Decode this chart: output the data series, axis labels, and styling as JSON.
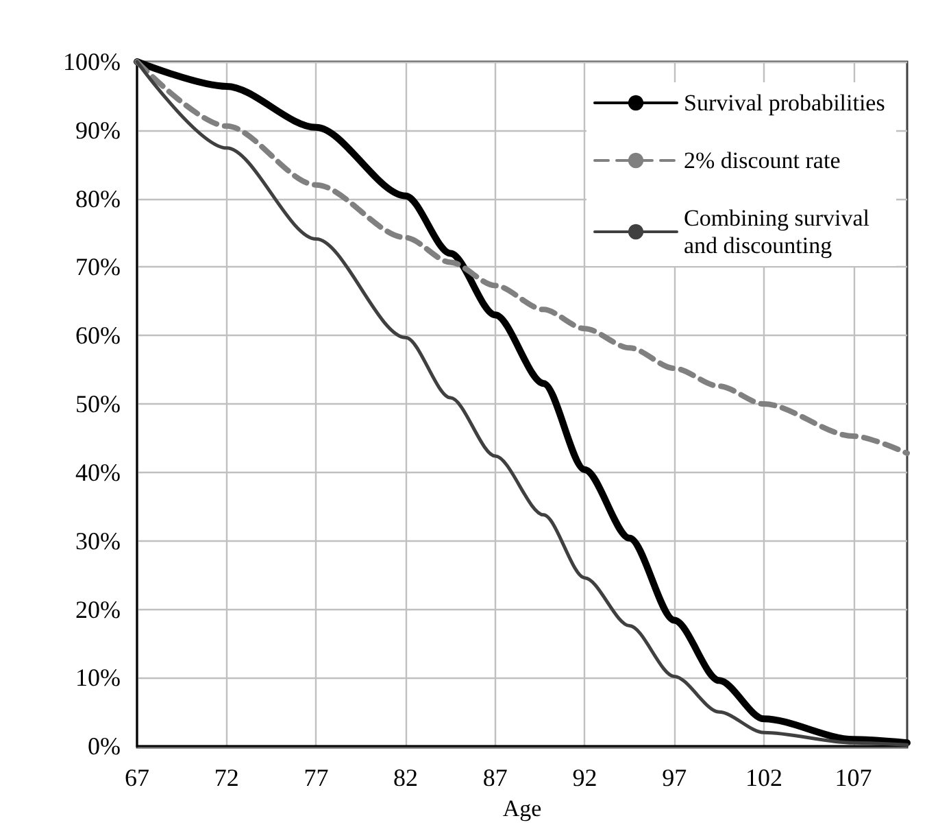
{
  "chart_data": {
    "type": "line",
    "xlabel": "Age",
    "x": [
      67,
      72,
      77,
      82,
      84.5,
      87,
      89.7,
      92,
      94.5,
      97,
      99.5,
      102,
      107,
      110
    ],
    "series": [
      {
        "name": "Survival probabilities",
        "color": "#000000",
        "line_style": "solid",
        "values": [
          100,
          96.4,
          90.4,
          80.4,
          72,
          63,
          53,
          40.4,
          30.4,
          18.4,
          9.6,
          4,
          1,
          0.5
        ]
      },
      {
        "name": "2% discount rate",
        "color": "#808080",
        "line_style": "dashed",
        "values": [
          100,
          90.6,
          82,
          74.3,
          70.7,
          67.3,
          63.8,
          61,
          58.2,
          55.2,
          52.6,
          50,
          45.3,
          42.8
        ]
      },
      {
        "name": "Combining survival and discounting",
        "color": "#404040",
        "line_style": "solid",
        "values": [
          100,
          87.4,
          74.1,
          59.7,
          50.9,
          42.4,
          33.8,
          24.6,
          17.6,
          10.2,
          5,
          2,
          0.5,
          0.2
        ]
      }
    ],
    "xlim": [
      67,
      110
    ],
    "xticks": [
      67,
      72,
      77,
      82,
      87,
      92,
      97,
      102,
      107
    ],
    "ylim": [
      0,
      100
    ],
    "yticks": [
      {
        "value": 0,
        "label": "0%"
      },
      {
        "value": 10,
        "label": "10%"
      },
      {
        "value": 20,
        "label": "20%"
      },
      {
        "value": 30,
        "label": "30%"
      },
      {
        "value": 40,
        "label": "40%"
      },
      {
        "value": 50,
        "label": "50%"
      },
      {
        "value": 60,
        "label": "60%"
      },
      {
        "value": 70,
        "label": "70%"
      },
      {
        "value": 80,
        "label": "80%"
      },
      {
        "value": 90,
        "label": "90%"
      },
      {
        "value": 100,
        "label": "100%"
      }
    ],
    "grid": true,
    "legend": "top right",
    "marker": "none"
  }
}
